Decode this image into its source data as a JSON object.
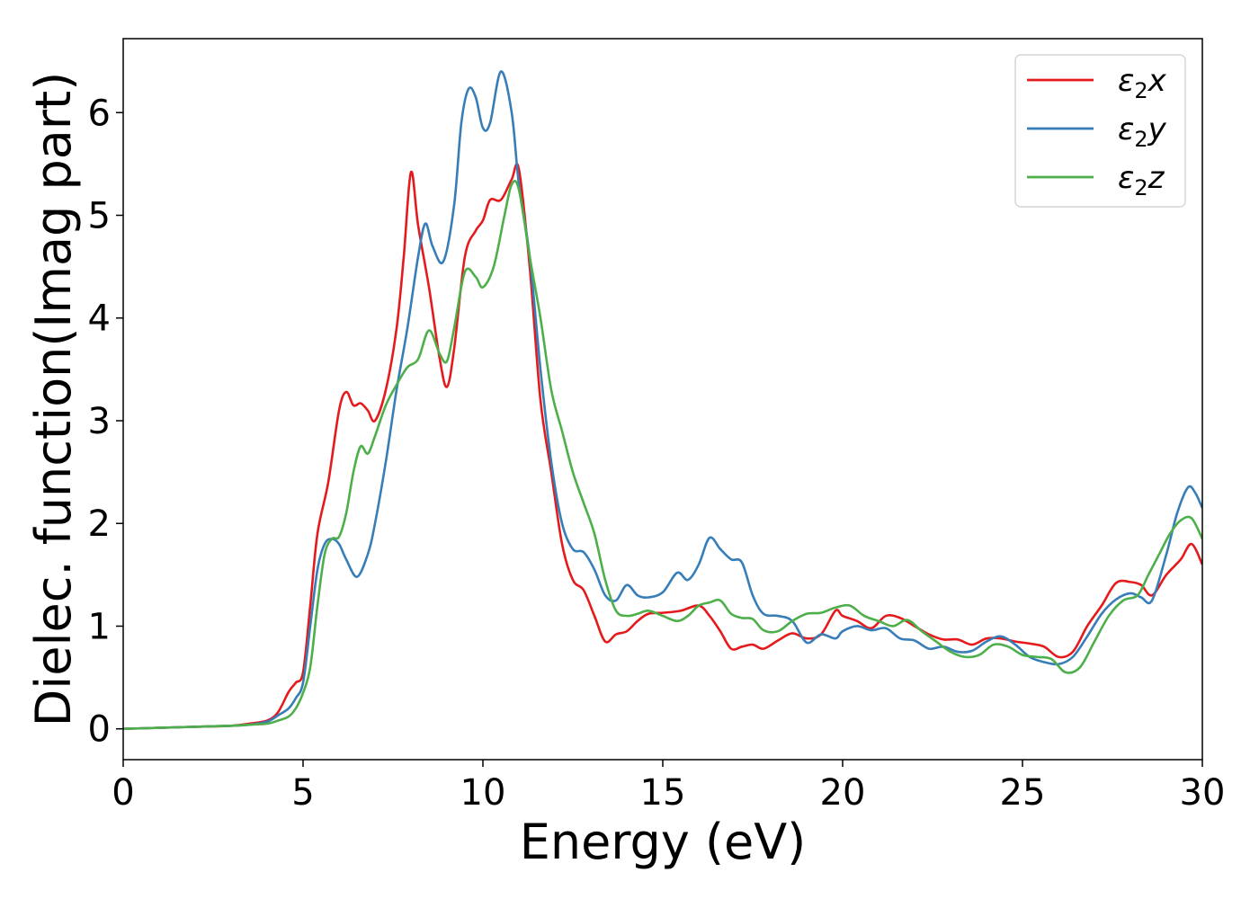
{
  "chart_data": {
    "type": "line",
    "xlabel": "Energy (eV)",
    "ylabel": "Dielec. function(Imag part)",
    "xlim": [
      0,
      30
    ],
    "ylim": [
      -0.3,
      6.72
    ],
    "xticks": [
      0,
      5,
      10,
      15,
      20,
      25,
      30
    ],
    "yticks": [
      0,
      1,
      2,
      3,
      4,
      5,
      6
    ],
    "legend_position": "top-right",
    "grid": false,
    "series": [
      {
        "name": "ε2x",
        "legend_base": "ε",
        "legend_sub": "2",
        "legend_var": "x",
        "color": "#e41a1c",
        "x": [
          0,
          1,
          2,
          3,
          3.5,
          4,
          4.3,
          4.6,
          4.8,
          5.0,
          5.2,
          5.4,
          5.7,
          6.0,
          6.2,
          6.4,
          6.6,
          6.8,
          7.0,
          7.3,
          7.6,
          7.8,
          8.0,
          8.2,
          8.5,
          8.8,
          9.0,
          9.2,
          9.5,
          9.8,
          10.0,
          10.2,
          10.5,
          10.8,
          11.0,
          11.3,
          11.6,
          11.9,
          12.2,
          12.5,
          12.8,
          13.1,
          13.4,
          13.7,
          14.0,
          14.3,
          14.6,
          15.0,
          15.5,
          16.0,
          16.3,
          16.6,
          16.9,
          17.2,
          17.5,
          17.8,
          18.2,
          18.6,
          19.0,
          19.4,
          19.8,
          20.0,
          20.4,
          20.8,
          21.2,
          21.6,
          22.0,
          22.4,
          22.8,
          23.2,
          23.6,
          24.0,
          24.4,
          24.8,
          25.2,
          25.6,
          26.0,
          26.4,
          26.8,
          27.2,
          27.6,
          28.0,
          28.3,
          28.6,
          29.0,
          29.4,
          29.7,
          30.0
        ],
        "values": [
          0,
          0.01,
          0.02,
          0.03,
          0.05,
          0.08,
          0.16,
          0.36,
          0.45,
          0.55,
          1.2,
          1.9,
          2.4,
          3.1,
          3.28,
          3.15,
          3.17,
          3.1,
          3.0,
          3.3,
          3.9,
          4.6,
          5.42,
          4.9,
          4.3,
          3.6,
          3.33,
          3.7,
          4.6,
          4.85,
          4.95,
          5.15,
          5.15,
          5.35,
          5.45,
          4.5,
          3.2,
          2.5,
          1.8,
          1.45,
          1.35,
          1.1,
          0.85,
          0.92,
          0.95,
          1.05,
          1.12,
          1.13,
          1.15,
          1.2,
          1.1,
          0.95,
          0.78,
          0.8,
          0.82,
          0.78,
          0.86,
          0.93,
          0.88,
          0.92,
          1.15,
          1.1,
          1.05,
          0.98,
          1.1,
          1.08,
          1.0,
          0.92,
          0.87,
          0.87,
          0.82,
          0.88,
          0.88,
          0.85,
          0.83,
          0.8,
          0.7,
          0.75,
          1.0,
          1.2,
          1.42,
          1.43,
          1.4,
          1.3,
          1.5,
          1.65,
          1.8,
          1.6
        ]
      },
      {
        "name": "ε2y",
        "legend_base": "ε",
        "legend_sub": "2",
        "legend_var": "y",
        "color": "#377eb8",
        "x": [
          0,
          1,
          2,
          3,
          3.5,
          4,
          4.3,
          4.6,
          4.8,
          5.0,
          5.2,
          5.4,
          5.6,
          5.8,
          6.0,
          6.2,
          6.5,
          6.8,
          7.0,
          7.3,
          7.6,
          7.9,
          8.2,
          8.4,
          8.6,
          8.9,
          9.2,
          9.4,
          9.6,
          9.8,
          10.0,
          10.2,
          10.5,
          10.8,
          11.0,
          11.3,
          11.6,
          11.9,
          12.2,
          12.5,
          12.8,
          13.1,
          13.4,
          13.7,
          14.0,
          14.3,
          14.6,
          15.0,
          15.4,
          15.7,
          16.0,
          16.3,
          16.6,
          16.9,
          17.2,
          17.5,
          17.8,
          18.2,
          18.6,
          19.0,
          19.4,
          19.8,
          20.0,
          20.4,
          20.8,
          21.2,
          21.6,
          22.0,
          22.4,
          22.8,
          23.2,
          23.6,
          24.0,
          24.4,
          24.8,
          25.2,
          25.6,
          26.0,
          26.4,
          26.8,
          27.2,
          27.6,
          28.0,
          28.3,
          28.6,
          29.0,
          29.3,
          29.6,
          29.8,
          30.0
        ],
        "values": [
          0,
          0.01,
          0.02,
          0.03,
          0.04,
          0.07,
          0.13,
          0.2,
          0.3,
          0.45,
          1.0,
          1.55,
          1.8,
          1.85,
          1.8,
          1.65,
          1.48,
          1.7,
          2.0,
          2.6,
          3.3,
          3.9,
          4.6,
          4.92,
          4.7,
          4.55,
          5.1,
          5.9,
          6.23,
          6.15,
          5.85,
          5.9,
          6.4,
          6.0,
          5.3,
          4.6,
          3.5,
          2.6,
          2.0,
          1.75,
          1.72,
          1.55,
          1.3,
          1.25,
          1.4,
          1.3,
          1.28,
          1.33,
          1.52,
          1.45,
          1.6,
          1.86,
          1.75,
          1.65,
          1.62,
          1.3,
          1.12,
          1.1,
          1.05,
          0.84,
          0.92,
          0.88,
          0.95,
          1.0,
          0.96,
          0.98,
          0.88,
          0.86,
          0.78,
          0.8,
          0.75,
          0.76,
          0.85,
          0.9,
          0.82,
          0.7,
          0.65,
          0.63,
          0.7,
          0.9,
          1.12,
          1.26,
          1.32,
          1.28,
          1.25,
          1.7,
          2.1,
          2.35,
          2.3,
          2.15
        ]
      },
      {
        "name": "ε2z",
        "legend_base": "ε",
        "legend_sub": "2",
        "legend_var": "z",
        "color": "#4daf4a",
        "x": [
          0,
          1,
          2,
          3,
          3.5,
          4,
          4.3,
          4.6,
          4.8,
          5.0,
          5.2,
          5.4,
          5.6,
          5.8,
          6.0,
          6.2,
          6.4,
          6.6,
          6.8,
          7.0,
          7.3,
          7.6,
          7.9,
          8.2,
          8.5,
          8.8,
          9.0,
          9.2,
          9.5,
          9.8,
          10.0,
          10.3,
          10.6,
          10.8,
          11.0,
          11.3,
          11.6,
          11.9,
          12.2,
          12.5,
          12.8,
          13.1,
          13.4,
          13.7,
          14.0,
          14.3,
          14.6,
          15.0,
          15.4,
          15.7,
          16.0,
          16.3,
          16.6,
          16.9,
          17.2,
          17.5,
          17.8,
          18.2,
          18.6,
          19.0,
          19.4,
          19.8,
          20.2,
          20.6,
          21.0,
          21.4,
          21.8,
          22.2,
          22.6,
          23.0,
          23.4,
          23.8,
          24.2,
          24.6,
          25.0,
          25.4,
          25.8,
          26.2,
          26.6,
          27.0,
          27.4,
          27.8,
          28.2,
          28.5,
          28.8,
          29.1,
          29.4,
          29.7,
          30.0
        ],
        "values": [
          0,
          0.01,
          0.02,
          0.03,
          0.04,
          0.05,
          0.08,
          0.12,
          0.2,
          0.35,
          0.6,
          1.2,
          1.7,
          1.85,
          1.87,
          2.1,
          2.5,
          2.75,
          2.68,
          2.85,
          3.15,
          3.35,
          3.52,
          3.6,
          3.88,
          3.65,
          3.58,
          3.9,
          4.45,
          4.4,
          4.3,
          4.5,
          5.0,
          5.3,
          5.25,
          4.6,
          4.0,
          3.3,
          2.9,
          2.5,
          2.2,
          1.9,
          1.45,
          1.15,
          1.1,
          1.12,
          1.15,
          1.1,
          1.05,
          1.1,
          1.2,
          1.23,
          1.25,
          1.12,
          1.08,
          1.07,
          0.96,
          0.95,
          1.05,
          1.12,
          1.13,
          1.18,
          1.2,
          1.1,
          1.05,
          1.0,
          1.06,
          0.95,
          0.85,
          0.75,
          0.7,
          0.72,
          0.82,
          0.8,
          0.72,
          0.7,
          0.68,
          0.55,
          0.6,
          0.85,
          1.1,
          1.25,
          1.3,
          1.5,
          1.7,
          1.9,
          2.03,
          2.05,
          1.85
        ]
      }
    ]
  }
}
